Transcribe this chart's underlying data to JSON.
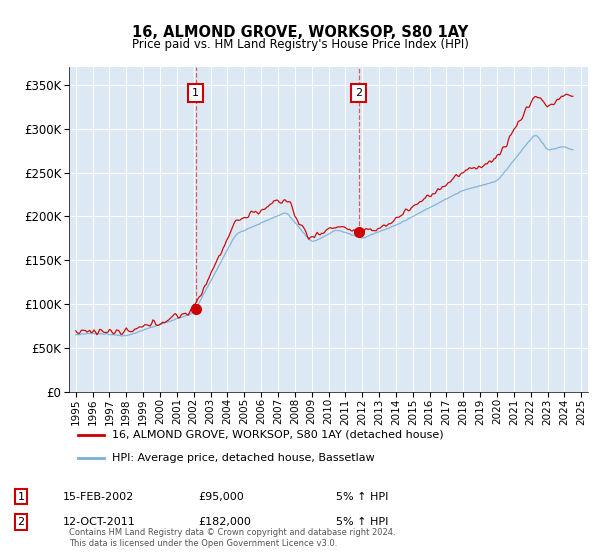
{
  "title": "16, ALMOND GROVE, WORKSOP, S80 1AY",
  "subtitle": "Price paid vs. HM Land Registry's House Price Index (HPI)",
  "background_color": "#ffffff",
  "plot_bg_color": "#dce9f5",
  "grid_color": "#ffffff",
  "legend_entry1": "16, ALMOND GROVE, WORKSOP, S80 1AY (detached house)",
  "legend_entry2": "HPI: Average price, detached house, Bassetlaw",
  "annotation1_label": "1",
  "annotation1_date": "15-FEB-2002",
  "annotation1_price": "£95,000",
  "annotation1_hpi": "5% ↑ HPI",
  "annotation2_label": "2",
  "annotation2_date": "12-OCT-2011",
  "annotation2_price": "£182,000",
  "annotation2_hpi": "5% ↑ HPI",
  "footer": "Contains HM Land Registry data © Crown copyright and database right 2024.\nThis data is licensed under the Open Government Licence v3.0.",
  "red_color": "#cc0000",
  "blue_color": "#7bafd4",
  "ylim": [
    0,
    370000
  ],
  "yticks": [
    0,
    50000,
    100000,
    150000,
    200000,
    250000,
    300000,
    350000
  ],
  "sale1_x": 2002.12,
  "sale1_y": 95000,
  "sale2_x": 2011.79,
  "sale2_y": 182000,
  "xmin": 1994.6,
  "xmax": 2025.4
}
